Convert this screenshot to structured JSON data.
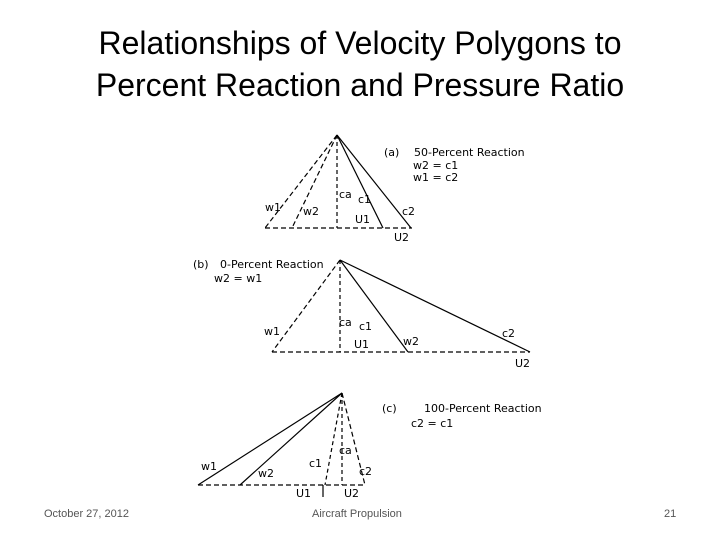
{
  "slide": {
    "title_line1": "Relationships of Velocity Polygons to",
    "title_line2": "Percent Reaction and Pressure Ratio"
  },
  "figure": {
    "a": {
      "tag": "(a)",
      "caption": "50-Percent Reaction",
      "eq1": "w2 = c1",
      "eq2": "w1 = c2",
      "labels": [
        "w1",
        "w2",
        "ca",
        "c1",
        "U1",
        "c2",
        "U2"
      ]
    },
    "b": {
      "tag": "(b)",
      "caption": "0-Percent Reaction",
      "eq1": "w2 = w1",
      "labels": [
        "w1",
        "ca",
        "c1",
        "U1",
        "w2",
        "c2",
        "U2"
      ]
    },
    "c": {
      "tag": "(c)",
      "caption": "100-Percent Reaction",
      "eq1": "c2 = c1",
      "labels": [
        "w1",
        "w2",
        "c1",
        "ca",
        "c2",
        "U1",
        "U2"
      ]
    }
  },
  "footer": {
    "date": "October 27, 2012",
    "course": "Aircraft Propulsion",
    "page": "21"
  }
}
